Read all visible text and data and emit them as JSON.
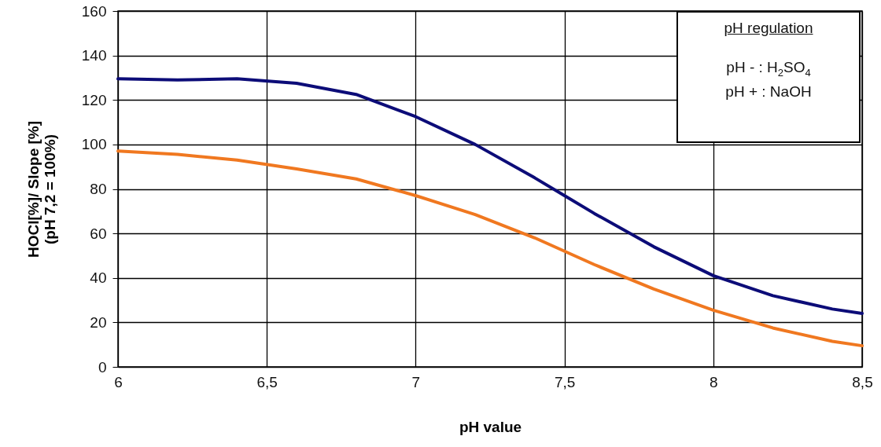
{
  "chart_data": {
    "type": "line",
    "xlabel": "pH value",
    "ylabel": "HOCl[%]/ Slope [%]\n(pH 7,2 = 100%)",
    "xlim": [
      6,
      8.5
    ],
    "xticks": [
      6,
      {
        "value": 6.5,
        "label": "6,5"
      },
      7,
      {
        "value": 7.5,
        "label": "7,5"
      },
      8,
      {
        "value": 8.5,
        "label": "8,5"
      }
    ],
    "ylim": [
      0,
      160
    ],
    "yticks": [
      0,
      20,
      40,
      60,
      80,
      100,
      120,
      140,
      160
    ],
    "grid": true,
    "line_style": "solid",
    "series": [
      {
        "color": "#0c0c78",
        "x": [
          6,
          6.2,
          6.4,
          6.6,
          6.8,
          7.0,
          7.2,
          7.4,
          7.5,
          7.6,
          7.8,
          8.0,
          8.2,
          8.4,
          8.5
        ],
        "values": [
          129.5,
          129,
          129.5,
          127.5,
          122.5,
          112.5,
          100,
          85,
          77,
          69,
          54,
          41,
          32,
          26,
          24
        ]
      },
      {
        "color": "#f07820",
        "x": [
          6,
          6.2,
          6.4,
          6.6,
          6.8,
          7.0,
          7.2,
          7.4,
          7.6,
          7.8,
          8.0,
          8.2,
          8.4,
          8.5
        ],
        "values": [
          97,
          95.5,
          93,
          89,
          84.5,
          77,
          68.5,
          58,
          46,
          35,
          25.5,
          17.5,
          11.5,
          9.5
        ]
      }
    ],
    "annotations": [
      "pH regulation",
      "pH  - : H$_{2}$SO$_{4}$",
      "pH + : NaOH"
    ]
  }
}
